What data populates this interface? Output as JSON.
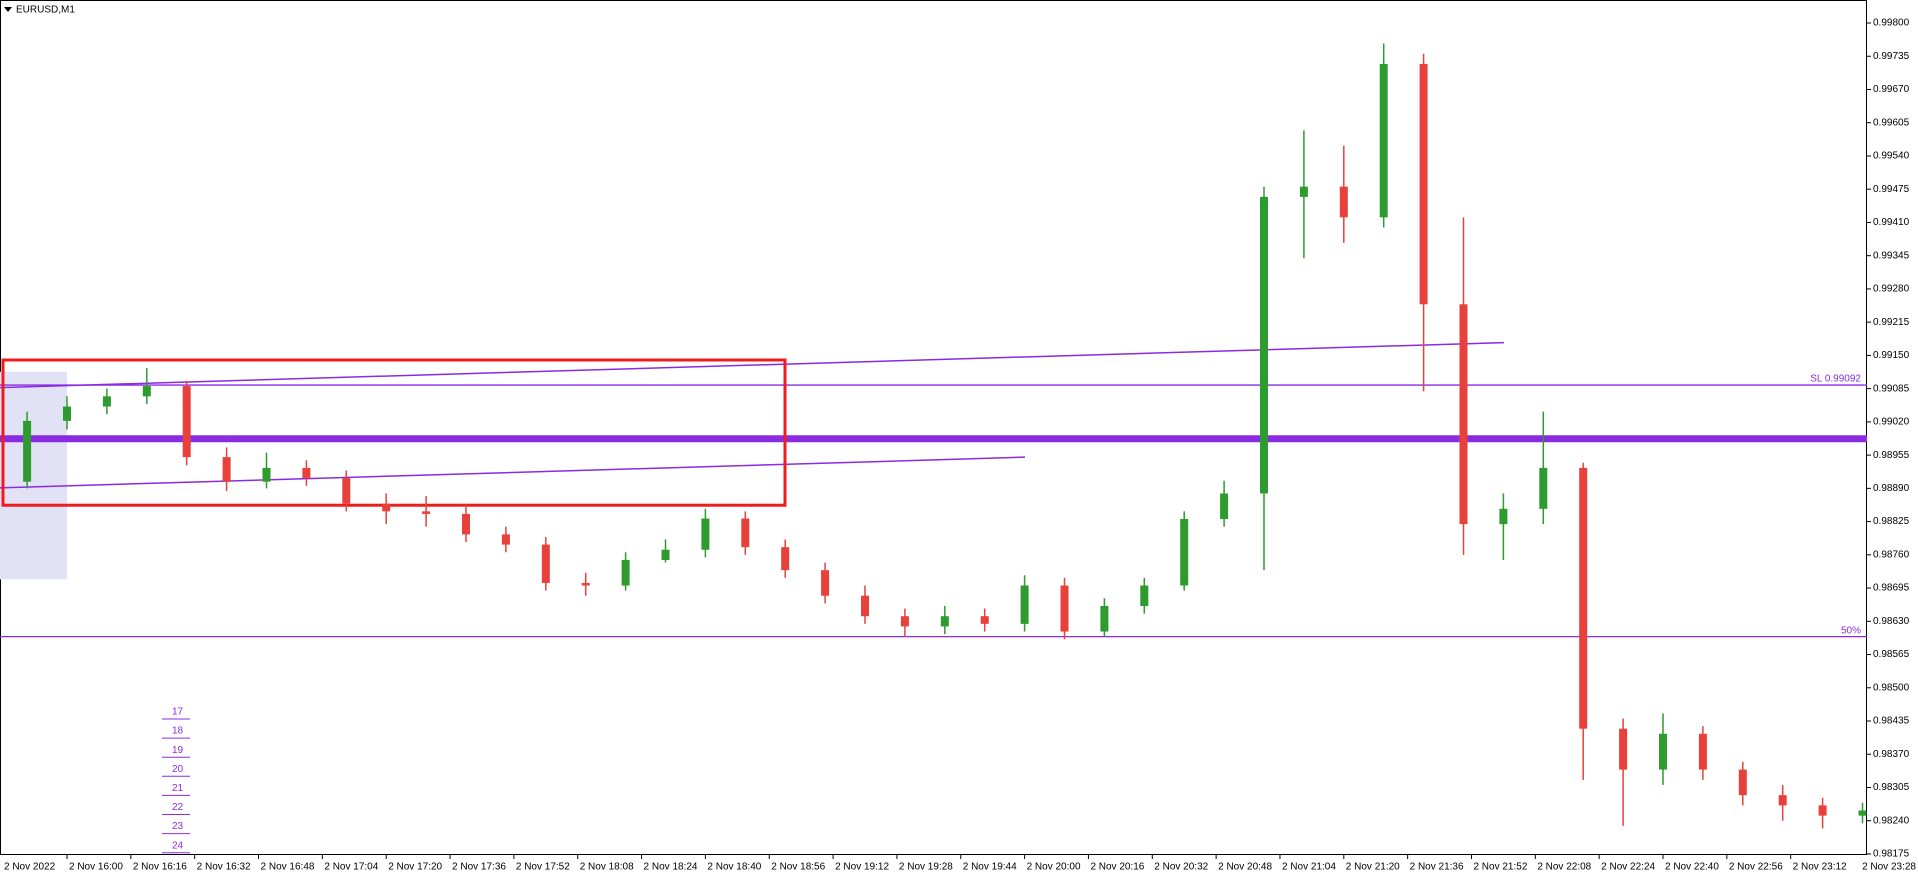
{
  "chart_data": {
    "type": "candlestick",
    "title": "EURUSD,M1",
    "up_color": "#2e9b2e",
    "down_color": "#e8403a",
    "level_color": "#8a2be2",
    "box_color": "#ee1c1c",
    "zone_color": "#e2e2f6",
    "ylim": [
      0.98173,
      0.99845
    ],
    "yticks": [
      {
        "value": 0.998,
        "label": "0.99800"
      },
      {
        "value": 0.99735,
        "label": "0.99735"
      },
      {
        "value": 0.9967,
        "label": "0.99670"
      },
      {
        "value": 0.99605,
        "label": "0.99605"
      },
      {
        "value": 0.9954,
        "label": "0.99540"
      },
      {
        "value": 0.99475,
        "label": "0.99475"
      },
      {
        "value": 0.9941,
        "label": "0.99410"
      },
      {
        "value": 0.99345,
        "label": "0.99345"
      },
      {
        "value": 0.9928,
        "label": "0.99280"
      },
      {
        "value": 0.99215,
        "label": "0.99215"
      },
      {
        "value": 0.9915,
        "label": "0.99150"
      },
      {
        "value": 0.99085,
        "label": "0.99085"
      },
      {
        "value": 0.9902,
        "label": "0.99020"
      },
      {
        "value": 0.98955,
        "label": "0.98955"
      },
      {
        "value": 0.9889,
        "label": "0.98890"
      },
      {
        "value": 0.98825,
        "label": "0.98825"
      },
      {
        "value": 0.9876,
        "label": "0.98760"
      },
      {
        "value": 0.98695,
        "label": "0.98695"
      },
      {
        "value": 0.9863,
        "label": "0.98630"
      },
      {
        "value": 0.98565,
        "label": "0.98565"
      },
      {
        "value": 0.985,
        "label": "0.98500"
      },
      {
        "value": 0.98435,
        "label": "0.98435"
      },
      {
        "value": 0.9837,
        "label": "0.98370"
      },
      {
        "value": 0.98305,
        "label": "0.98305"
      },
      {
        "value": 0.9824,
        "label": "0.98240"
      },
      {
        "value": 0.98175,
        "label": "0.98175"
      }
    ],
    "x_labels": [
      "2 Nov 2022",
      "2 Nov 16:00",
      "2 Nov 16:16",
      "2 Nov 16:32",
      "2 Nov 16:48",
      "2 Nov 17:04",
      "2 Nov 17:20",
      "2 Nov 17:36",
      "2 Nov 17:52",
      "2 Nov 18:08",
      "2 Nov 18:24",
      "2 Nov 18:40",
      "2 Nov 18:56",
      "2 Nov 19:12",
      "2 Nov 19:28",
      "2 Nov 19:44",
      "2 Nov 20:00",
      "2 Nov 20:16",
      "2 Nov 20:32",
      "2 Nov 20:48",
      "2 Nov 21:04",
      "2 Nov 21:20",
      "2 Nov 21:36",
      "2 Nov 21:52",
      "2 Nov 22:08",
      "2 Nov 22:24",
      "2 Nov 22:40",
      "2 Nov 22:56",
      "2 Nov 23:12",
      "2 Nov 23:28"
    ],
    "open": [
      0.98903,
      0.99022,
      0.9905,
      0.9907,
      0.9909,
      0.98951,
      0.98903,
      0.9893,
      0.9891,
      0.9886,
      0.98845,
      0.9884,
      0.988,
      0.9878,
      0.98705,
      0.987,
      0.9875,
      0.9877,
      0.98831,
      0.98775,
      0.9873,
      0.9868,
      0.9864,
      0.9862,
      0.9864,
      0.98625,
      0.987,
      0.9861,
      0.9866,
      0.987,
      0.9883,
      0.9888,
      0.9946,
      0.9948,
      0.9942,
      0.9972,
      0.9925,
      0.9882,
      0.9885,
      0.9893,
      0.9842,
      0.9834,
      0.9841,
      0.9834,
      0.9829,
      0.9827,
      0.9825
    ],
    "high": [
      0.9904,
      0.9907,
      0.99085,
      0.99125,
      0.991,
      0.9897,
      0.9896,
      0.98945,
      0.98925,
      0.9888,
      0.98875,
      0.9886,
      0.98815,
      0.98795,
      0.98725,
      0.98765,
      0.9879,
      0.9885,
      0.98845,
      0.9879,
      0.98745,
      0.987,
      0.98655,
      0.9866,
      0.98655,
      0.9872,
      0.98715,
      0.98675,
      0.98715,
      0.98845,
      0.98905,
      0.9948,
      0.9959,
      0.9956,
      0.9976,
      0.9974,
      0.9942,
      0.9888,
      0.9904,
      0.9894,
      0.9844,
      0.9845,
      0.98425,
      0.98355,
      0.9831,
      0.98285,
      0.98275
    ],
    "low": [
      0.9889,
      0.99005,
      0.99035,
      0.99055,
      0.98935,
      0.98885,
      0.9889,
      0.98895,
      0.98845,
      0.9882,
      0.98815,
      0.98785,
      0.98765,
      0.9869,
      0.9868,
      0.9869,
      0.98745,
      0.98755,
      0.9876,
      0.98715,
      0.98665,
      0.98625,
      0.986,
      0.98605,
      0.9861,
      0.9861,
      0.98595,
      0.986,
      0.98645,
      0.9869,
      0.98815,
      0.9873,
      0.9934,
      0.9937,
      0.994,
      0.9908,
      0.9876,
      0.9875,
      0.9882,
      0.9832,
      0.9823,
      0.9831,
      0.9832,
      0.9827,
      0.9824,
      0.98225,
      0.98235
    ],
    "close": [
      0.99022,
      0.9905,
      0.9907,
      0.9909,
      0.98951,
      0.98903,
      0.9893,
      0.9891,
      0.9886,
      0.98845,
      0.9884,
      0.988,
      0.9878,
      0.98705,
      0.987,
      0.9875,
      0.9877,
      0.98831,
      0.98775,
      0.9873,
      0.9868,
      0.9864,
      0.9862,
      0.9864,
      0.98625,
      0.987,
      0.9861,
      0.9866,
      0.987,
      0.9883,
      0.9888,
      0.9946,
      0.9948,
      0.9942,
      0.9972,
      0.9925,
      0.9882,
      0.9885,
      0.9893,
      0.9842,
      0.9834,
      0.9841,
      0.9834,
      0.9829,
      0.9827,
      0.9825,
      0.9826
    ],
    "levels": [
      {
        "label": "SL 0.99092",
        "value": 0.99092
      },
      {
        "value": 0.98987
      },
      {
        "label": "50%",
        "value": 0.986
      }
    ],
    "trend_lines": [
      {
        "start": 0.99087,
        "end": 0.99175
      },
      {
        "start": 0.98891,
        "end": 0.98951
      }
    ],
    "box": {
      "top": 0.99141,
      "bottom": 0.98857
    },
    "zone": {
      "top": 0.99118,
      "bottom": 0.98712
    },
    "annotations": [
      "17",
      "18",
      "19",
      "20",
      "21",
      "22",
      "23",
      "24"
    ]
  }
}
